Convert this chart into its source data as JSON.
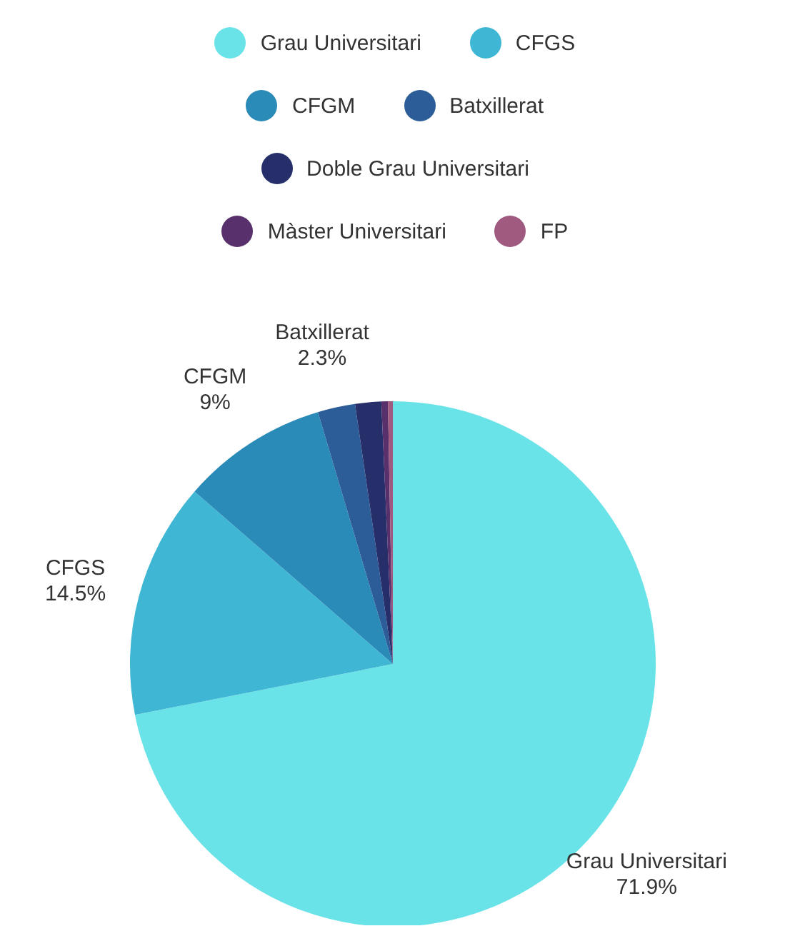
{
  "chart_data": {
    "type": "pie",
    "categories": [
      "Grau Universitari",
      "CFGS",
      "CFGM",
      "Batxillerat",
      "Doble Grau Universitari",
      "Màster Universitari",
      "FP"
    ],
    "values": [
      71.9,
      14.5,
      9,
      2.3,
      1.6,
      0.4,
      0.3
    ],
    "colors": [
      "#6ae3e8",
      "#3fb6d4",
      "#2a8ab8",
      "#2c5d99",
      "#272f6b",
      "#58306b",
      "#a05a80"
    ],
    "value_labels": [
      "71.9%",
      "14.5%",
      "9%",
      "2.3%",
      null,
      null,
      null
    ],
    "legend": "top"
  }
}
